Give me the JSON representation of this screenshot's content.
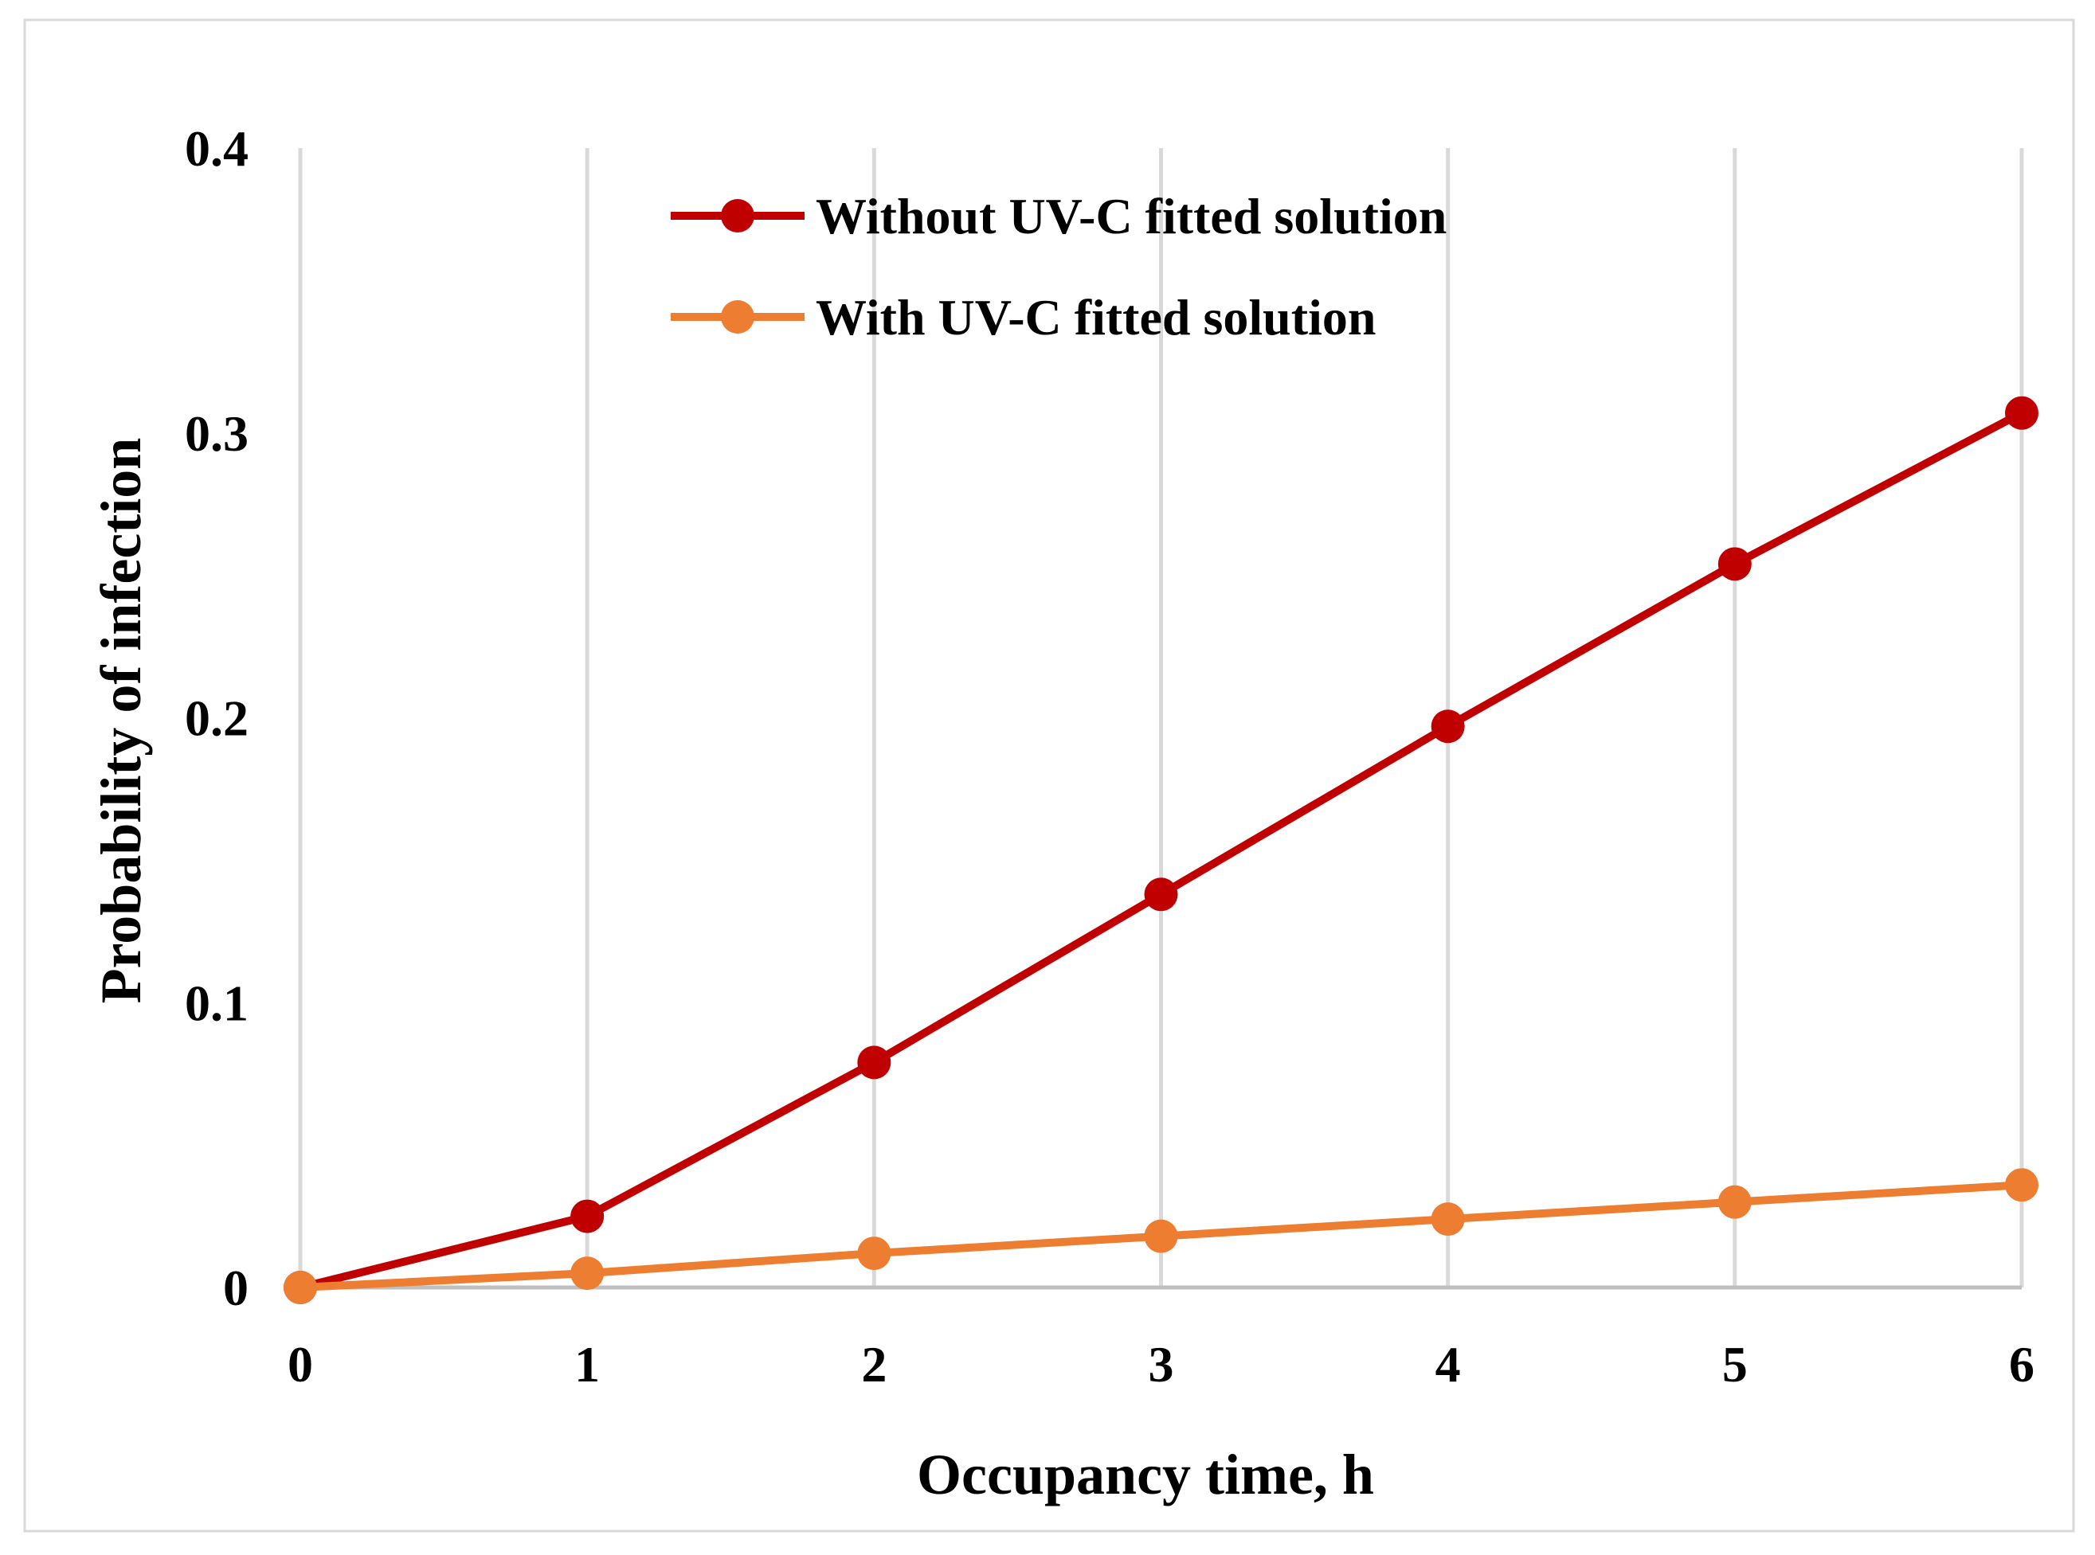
{
  "chart_data": {
    "type": "line",
    "title": "",
    "xlabel": "Occupancy time, h",
    "ylabel": "Probability of infection",
    "xlim": [
      0,
      6
    ],
    "ylim": [
      0,
      0.4
    ],
    "x": [
      0,
      1,
      2,
      3,
      4,
      5,
      6
    ],
    "x_ticks": [
      "0",
      "1",
      "2",
      "3",
      "4",
      "5",
      "6"
    ],
    "y_ticks": [
      0,
      0.1,
      0.2,
      0.3,
      0.4
    ],
    "y_tick_labels": [
      "0",
      "0.1",
      "0.2",
      "0.3",
      "0.4"
    ],
    "grid": "vertical",
    "legend_position": "top-center",
    "series": [
      {
        "name": "Without UV-C fitted solution",
        "color": "#C00000",
        "values": [
          0,
          0.025,
          0.079,
          0.138,
          0.197,
          0.254,
          0.307
        ]
      },
      {
        "name": "With UV-C fitted solution",
        "color": "#ED7D31",
        "values": [
          0,
          0.005,
          0.012,
          0.018,
          0.024,
          0.03,
          0.036
        ]
      }
    ]
  }
}
